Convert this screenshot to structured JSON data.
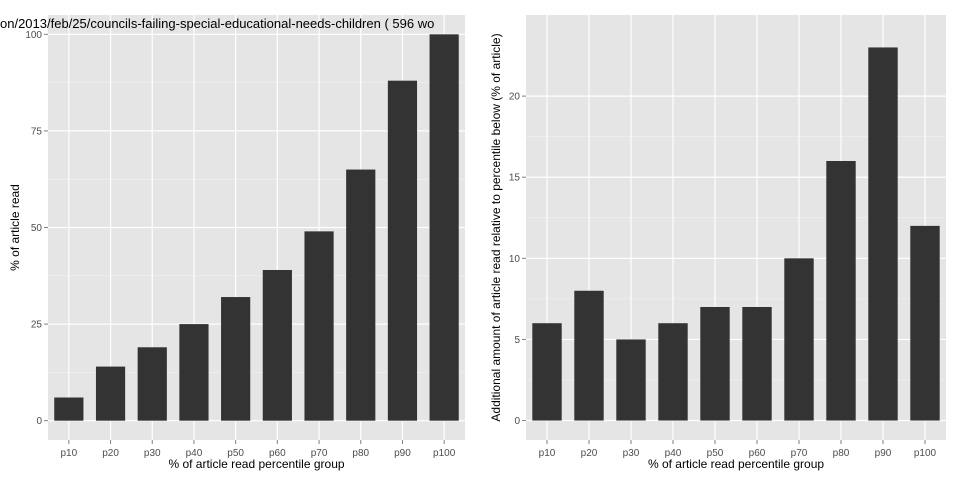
{
  "chart_data": [
    {
      "type": "bar",
      "title": "on/2013/feb/25/councils-failing-special-educational-needs-children ( 596 wo",
      "xlabel": "% of article read percentile group",
      "ylabel": "% of article read",
      "categories": [
        "p10",
        "p20",
        "p30",
        "p40",
        "p50",
        "p60",
        "p70",
        "p80",
        "p90",
        "p100"
      ],
      "values": [
        6,
        14,
        19,
        25,
        32,
        39,
        49,
        65,
        88,
        100
      ],
      "ylim": [
        -5,
        105
      ],
      "yticks": [
        0,
        25,
        50,
        75,
        100
      ],
      "ytick_labels": [
        "0",
        "25",
        "50",
        "75",
        "100"
      ],
      "grid": true,
      "colors": {
        "panel": "#e5e5e5",
        "bar": "#333333",
        "grid": "#ffffff"
      }
    },
    {
      "type": "bar",
      "title": "",
      "xlabel": "% of article read percentile group",
      "ylabel": "Additional amount of article read relative to percentile below (% of article)",
      "categories": [
        "p10",
        "p20",
        "p30",
        "p40",
        "p50",
        "p60",
        "p70",
        "p80",
        "p90",
        "p100"
      ],
      "values": [
        6,
        8,
        5,
        6,
        7,
        7,
        10,
        16,
        23,
        12
      ],
      "ylim": [
        -1.2,
        25
      ],
      "yticks": [
        0,
        5,
        10,
        15,
        20
      ],
      "ytick_labels": [
        "0",
        "5",
        "10",
        "15",
        "20"
      ],
      "grid": true,
      "colors": {
        "panel": "#e5e5e5",
        "bar": "#333333",
        "grid": "#ffffff"
      }
    }
  ]
}
